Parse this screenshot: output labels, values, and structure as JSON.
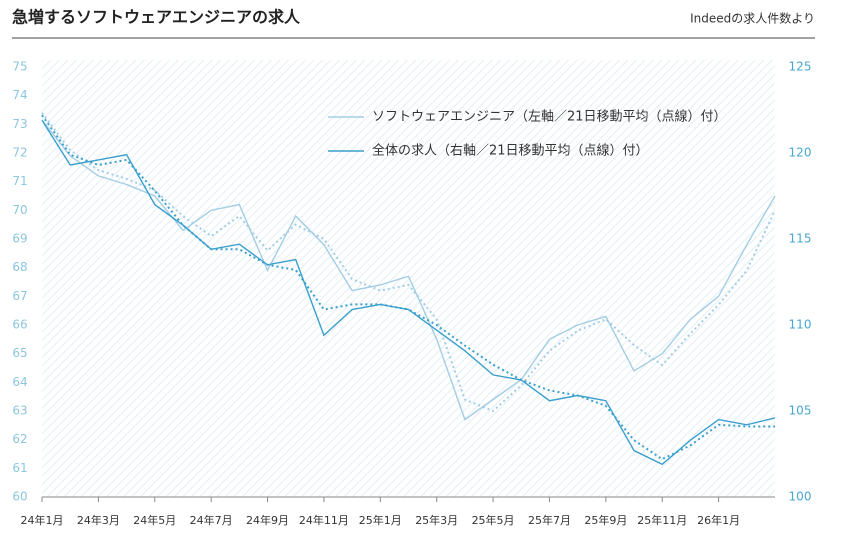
{
  "chart_data": {
    "type": "line",
    "title": "急増するソフトウェアエンジニアの求人",
    "source": "Indeedの求人件数より",
    "categories": [
      "24年1月",
      null,
      "24年3月",
      null,
      "24年5月",
      null,
      "24年7月",
      null,
      "24年9月",
      null,
      "24年11月",
      null,
      "25年1月",
      null,
      "25年3月",
      null,
      "25年5月",
      null,
      "25年7月",
      null,
      "25年9月",
      null,
      "25年11月",
      null,
      "26年1月",
      null,
      null
    ],
    "ylim": [
      60,
      75
    ],
    "yticks": [
      60,
      61,
      62,
      63,
      64,
      65,
      66,
      67,
      68,
      69,
      70,
      71,
      72,
      73,
      74,
      75
    ],
    "y2lim": [
      100,
      125
    ],
    "y2ticks": [
      100,
      105,
      110,
      115,
      120,
      125
    ],
    "series": [
      {
        "name": "ソフトウェアエンジニア（左軸／21日移動平均（点線）付）",
        "color": "#a3cde5",
        "axis": "y",
        "values": [
          73.15,
          71.9,
          71.2,
          70.9,
          70.5,
          69.3,
          70.0,
          70.2,
          67.9,
          69.8,
          68.8,
          67.2,
          67.4,
          67.7,
          65.5,
          62.7,
          63.4,
          64.1,
          65.5,
          66.0,
          66.3,
          64.4,
          65.0,
          66.2,
          67.0,
          68.8,
          70.5
        ]
      },
      {
        "color": "#a3cde5",
        "axis": "y",
        "dashed": true,
        "values": [
          73.4,
          72.1,
          71.4,
          71.1,
          70.7,
          69.8,
          69.1,
          69.8,
          68.6,
          69.5,
          69.0,
          67.6,
          67.2,
          67.4,
          66.2,
          63.4,
          63.0,
          63.9,
          65.1,
          65.8,
          66.2,
          65.3,
          64.6,
          65.7,
          66.7,
          67.9,
          70.0
        ]
      },
      {
        "name": "全体の求人（右軸／21日移動平均（点線）付）",
        "color": "#3a9fcd",
        "axis": "y2",
        "values": [
          121.9,
          119.3,
          119.6,
          119.9,
          117.0,
          115.8,
          114.4,
          114.7,
          113.5,
          113.8,
          109.4,
          110.9,
          111.2,
          110.9,
          109.7,
          108.5,
          107.1,
          106.8,
          105.6,
          105.9,
          105.6,
          102.7,
          101.9,
          103.3,
          104.5,
          104.2,
          104.6
        ]
      },
      {
        "color": "#3a9fcd",
        "axis": "y2",
        "dashed": true,
        "values": [
          122.2,
          119.9,
          119.3,
          119.6,
          117.8,
          115.8,
          114.4,
          114.4,
          113.5,
          113.2,
          110.9,
          111.2,
          111.2,
          110.9,
          110.0,
          108.8,
          107.7,
          106.8,
          106.2,
          105.9,
          105.3,
          103.3,
          102.2,
          103.0,
          104.2,
          104.1,
          104.1
        ]
      }
    ]
  }
}
